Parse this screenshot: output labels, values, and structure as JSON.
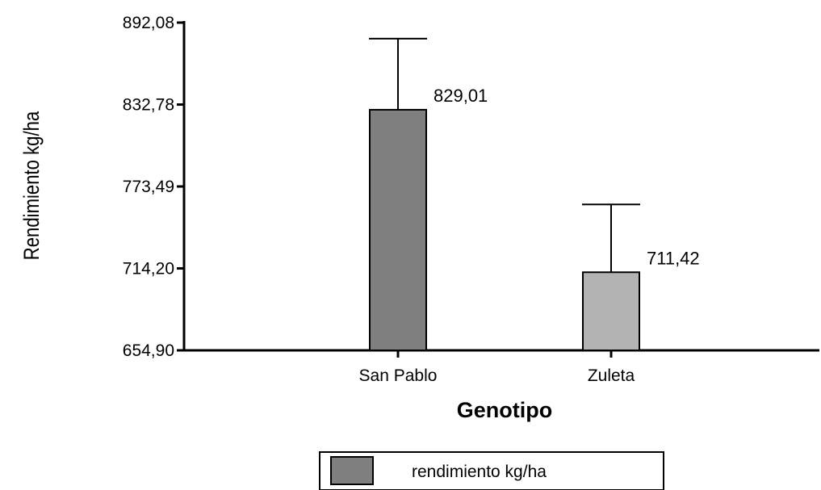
{
  "chart_data": {
    "type": "bar",
    "categories": [
      "San Pablo",
      "Zuleta"
    ],
    "series": [
      {
        "name": "rendimiento kg/ha",
        "values": [
          829.01,
          711.42
        ],
        "error_upper": [
          880.5,
          760.5
        ],
        "colors": [
          "#7f7f7f",
          "#b3b3b3"
        ]
      }
    ],
    "value_labels": [
      "829,01",
      "711,42"
    ],
    "xlabel": "Genotipo",
    "ylabel": "Rendimiento kg/ha",
    "ylim": [
      654.9,
      892.08
    ],
    "yticks": [
      654.9,
      714.2,
      773.49,
      832.78,
      892.08
    ],
    "ytick_labels": [
      "654,90",
      "714,20",
      "773,49",
      "832,78",
      "892,08"
    ],
    "grid": false,
    "legend_position": "bottom-center"
  }
}
